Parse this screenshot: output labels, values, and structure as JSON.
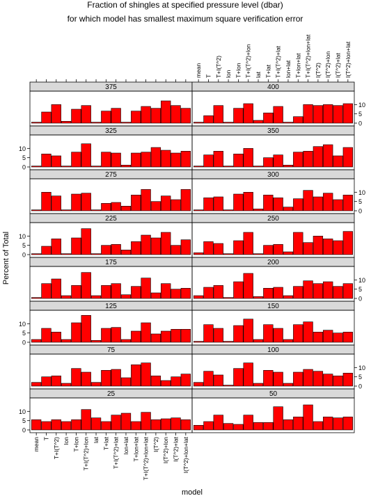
{
  "chart_data": {
    "type": "bar",
    "title": "Fraction of shingles at specified pressure level (dbar)",
    "subtitle": "for which model has smallest maximum square verification error",
    "xlabel": "model",
    "ylabel": "Percent of Total",
    "bar_color": "#ff0000",
    "strip_color": "#d9d9d9",
    "ylim": [
      0,
      15
    ],
    "yticks": [
      0,
      5,
      10
    ],
    "categories": [
      "mean",
      "T",
      "T+I(T^2)",
      "lon",
      "T+lon",
      "T+I(T^2)+lon",
      "lat",
      "T+lat",
      "T+I(T^2)+lat",
      "lon+lat",
      "T+lon+lat",
      "T+I(T^2)+lon+lat",
      "I(T^2)",
      "I(T^2)+lon",
      "I(T^2)+lat",
      "I(T^2)+lon+lat"
    ],
    "panels": [
      {
        "label": "25",
        "values": [
          5.5,
          4.5,
          5.5,
          4.5,
          5.5,
          11,
          6.5,
          4.5,
          8,
          9,
          4.5,
          9.5,
          5.5,
          6,
          6.5,
          5.5
        ]
      },
      {
        "label": "50",
        "values": [
          2.5,
          4.5,
          8,
          3.5,
          3,
          8,
          4,
          4,
          12.5,
          5.5,
          7,
          13.5,
          4.5,
          7,
          6.5,
          7
        ]
      },
      {
        "label": "75",
        "values": [
          2,
          5,
          5.5,
          1.5,
          9.5,
          7.5,
          2,
          8.5,
          9,
          4.5,
          11.5,
          12.5,
          5.5,
          3,
          5,
          6.5
        ]
      },
      {
        "label": "100",
        "values": [
          2,
          8,
          6,
          0.5,
          9.5,
          12.5,
          1.5,
          8.5,
          7.5,
          1.5,
          7.5,
          9,
          8,
          6.5,
          5.5,
          7
        ]
      },
      {
        "label": "125",
        "values": [
          1.5,
          7.5,
          5.5,
          1.5,
          10.5,
          14.5,
          1,
          7.5,
          8,
          1.5,
          6,
          10.5,
          4.5,
          6,
          7,
          7
        ]
      },
      {
        "label": "150",
        "values": [
          0.5,
          9.5,
          7.5,
          0.5,
          9,
          12.5,
          1.5,
          9.5,
          7.5,
          1.5,
          9.5,
          11,
          5.5,
          6.5,
          5,
          5.5
        ]
      },
      {
        "label": "175",
        "values": [
          0.5,
          8,
          10.5,
          1.5,
          7,
          14,
          1.5,
          7,
          8,
          2,
          6.5,
          11,
          3,
          8,
          5,
          5.5
        ]
      },
      {
        "label": "200",
        "values": [
          1.5,
          6,
          7,
          0.5,
          9,
          13.5,
          1,
          5.5,
          6,
          1.5,
          6.5,
          9.5,
          8,
          9,
          6.5,
          8
        ]
      },
      {
        "label": "225",
        "values": [
          0.5,
          4.5,
          8.5,
          0.5,
          9,
          14,
          0.5,
          5,
          5.5,
          2.5,
          7,
          10.5,
          9,
          12,
          5,
          8
        ]
      },
      {
        "label": "250",
        "values": [
          1,
          7,
          6,
          0.5,
          7.5,
          12,
          0.5,
          5,
          5.5,
          1.5,
          12,
          6.5,
          10,
          8.5,
          7.5,
          12.5
        ]
      },
      {
        "label": "275",
        "values": [
          0.5,
          10,
          8,
          0.5,
          9,
          9.5,
          0.5,
          4,
          4.5,
          2.5,
          8.5,
          11.5,
          5,
          8,
          6,
          11.5
        ]
      },
      {
        "label": "300",
        "values": [
          0.5,
          7,
          7.5,
          0.5,
          9,
          10,
          1,
          8.5,
          7,
          2,
          6.5,
          11,
          7.5,
          9.5,
          6,
          8.5
        ]
      },
      {
        "label": "325",
        "values": [
          0.5,
          7,
          6,
          0.5,
          8,
          12.5,
          0.5,
          8,
          7.5,
          1,
          7.5,
          8,
          10.5,
          9,
          7.5,
          8.5
        ]
      },
      {
        "label": "350",
        "values": [
          0.5,
          6.5,
          8.5,
          0.5,
          7,
          10,
          0.5,
          5,
          6.5,
          1,
          8,
          8.5,
          11,
          12,
          6,
          10.5
        ]
      },
      {
        "label": "375",
        "values": [
          0.5,
          6,
          10,
          1,
          7.5,
          9.5,
          0.5,
          6.5,
          8,
          0.5,
          6.5,
          9,
          8,
          12,
          9.5,
          8
        ]
      },
      {
        "label": "400",
        "values": [
          0.5,
          4,
          9.5,
          0.5,
          8,
          10.5,
          1.5,
          5.5,
          9,
          0.5,
          3.5,
          10,
          9.5,
          10,
          9.5,
          10.5
        ]
      }
    ]
  }
}
